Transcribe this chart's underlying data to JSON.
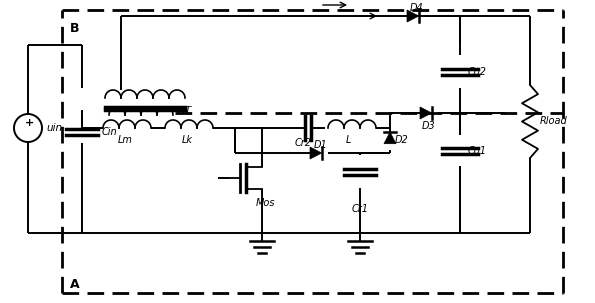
{
  "bg_color": "#ffffff",
  "figsize": [
    5.95,
    3.03
  ],
  "dpi": 100,
  "xlim": [
    0,
    595
  ],
  "ylim": [
    0,
    303
  ]
}
